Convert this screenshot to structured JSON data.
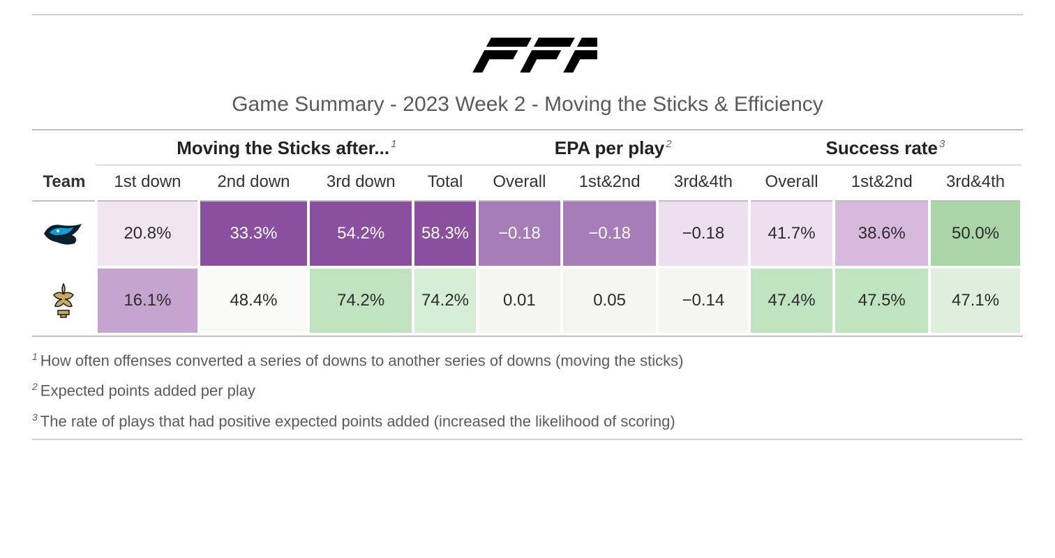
{
  "title": "Game Summary - 2023 Week 2 - Moving the Sticks & Efficiency",
  "logo_text": "PFF",
  "spanners": [
    {
      "label": "Moving the Sticks after...",
      "sup": "1"
    },
    {
      "label": "EPA per play",
      "sup": "2"
    },
    {
      "label": "Success rate",
      "sup": "3"
    }
  ],
  "columns": {
    "team": "Team",
    "d1": "1st down",
    "d2": "2nd down",
    "d3": "3rd down",
    "total": "Total",
    "epa_overall": "Overall",
    "epa_12": "1st&2nd",
    "epa_34": "3rd&4th",
    "sr_overall": "Overall",
    "sr_12": "1st&2nd",
    "sr_34": "3rd&4th"
  },
  "rows": [
    {
      "team": "Carolina Panthers",
      "team_icon": "panthers",
      "cells": [
        {
          "value": "20.8%",
          "bg": "#f1e6f0",
          "fg": "#2b2b2b"
        },
        {
          "value": "33.3%",
          "bg": "#8a4f9e",
          "fg": "#ffffff"
        },
        {
          "value": "54.2%",
          "bg": "#8a4f9e",
          "fg": "#ffffff"
        },
        {
          "value": "58.3%",
          "bg": "#8a4f9e",
          "fg": "#ffffff"
        },
        {
          "value": "−0.18",
          "bg": "#a77db8",
          "fg": "#ffffff"
        },
        {
          "value": "−0.18",
          "bg": "#a77db8",
          "fg": "#ffffff"
        },
        {
          "value": "−0.18",
          "bg": "#eddff0",
          "fg": "#2b2b2b"
        },
        {
          "value": "41.7%",
          "bg": "#eddff0",
          "fg": "#2b2b2b"
        },
        {
          "value": "38.6%",
          "bg": "#d7b9dd",
          "fg": "#2b2b2b"
        },
        {
          "value": "50.0%",
          "bg": "#a9d5a9",
          "fg": "#2b2b2b"
        }
      ]
    },
    {
      "team": "New Orleans Saints",
      "team_icon": "saints",
      "cells": [
        {
          "value": "16.1%",
          "bg": "#c6a4d0",
          "fg": "#2b2b2b"
        },
        {
          "value": "48.4%",
          "bg": "#f9f9f7",
          "fg": "#2b2b2b"
        },
        {
          "value": "74.2%",
          "bg": "#c0e3c0",
          "fg": "#2b2b2b"
        },
        {
          "value": "74.2%",
          "bg": "#d6eed6",
          "fg": "#2b2b2b"
        },
        {
          "value": "0.01",
          "bg": "#f5f5f3",
          "fg": "#2b2b2b"
        },
        {
          "value": "0.05",
          "bg": "#f5f5f3",
          "fg": "#2b2b2b"
        },
        {
          "value": "−0.14",
          "bg": "#f5f5f3",
          "fg": "#2b2b2b"
        },
        {
          "value": "47.4%",
          "bg": "#c0e3c0",
          "fg": "#2b2b2b"
        },
        {
          "value": "47.5%",
          "bg": "#c0e3c0",
          "fg": "#2b2b2b"
        },
        {
          "value": "47.1%",
          "bg": "#deefde",
          "fg": "#2b2b2b"
        }
      ]
    }
  ],
  "footnotes": [
    {
      "num": "1",
      "text": "How often offenses converted a series of downs to another series of downs (moving the sticks)"
    },
    {
      "num": "2",
      "text": "Expected points added per play"
    },
    {
      "num": "3",
      "text": "The rate of plays that had positive expected points added (increased the likelihood of scoring)"
    }
  ],
  "colors": {
    "rule": "#bfbfbf",
    "title": "#5a5a5a"
  }
}
